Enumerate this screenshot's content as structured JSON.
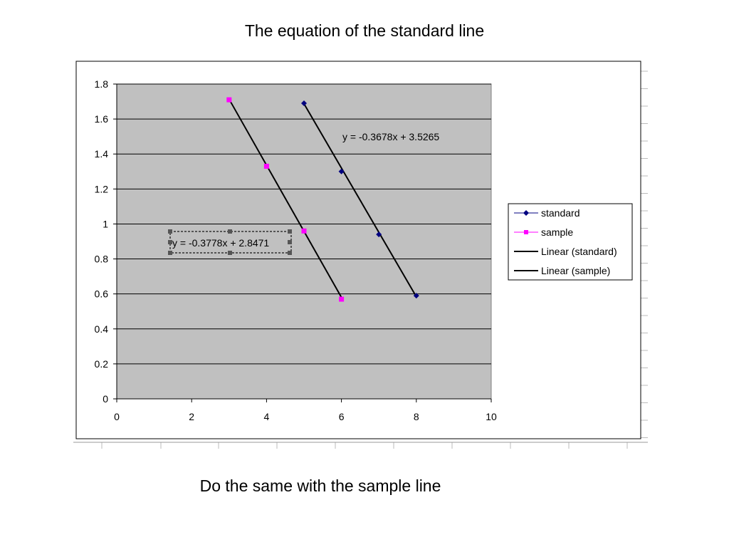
{
  "slide": {
    "title": "The equation of the standard line",
    "footer": "Do the same with the sample line"
  },
  "chart_data": {
    "type": "scatter",
    "xlim": [
      0,
      10
    ],
    "ylim": [
      0,
      1.8
    ],
    "x_ticks": [
      "0",
      "2",
      "4",
      "6",
      "8",
      "10"
    ],
    "y_ticks": [
      "0",
      "0.2",
      "0.4",
      "0.6",
      "0.8",
      "1",
      "1.2",
      "1.4",
      "1.6",
      "1.8"
    ],
    "grid": "horizontal",
    "plot_background": "#c0c0c0",
    "legend_position": "right",
    "series": [
      {
        "name": "standard",
        "marker": "diamond",
        "color": "#000080",
        "x": [
          5,
          6,
          7,
          8
        ],
        "y": [
          1.69,
          1.3,
          0.94,
          0.59
        ],
        "trendline": {
          "name": "Linear (standard)",
          "slope": -0.3678,
          "intercept": 3.5265,
          "x_range": [
            5,
            8
          ],
          "equation": "y = -0.3678x + 3.5265"
        }
      },
      {
        "name": "sample",
        "marker": "square",
        "color": "#ff00ff",
        "x": [
          3,
          4,
          5,
          6
        ],
        "y": [
          1.71,
          1.33,
          0.96,
          0.57
        ],
        "trendline": {
          "name": "Linear (sample)",
          "slope": -0.3778,
          "intercept": 2.8471,
          "x_range": [
            3,
            6
          ],
          "equation": "y = -0.3778x + 2.8471"
        }
      }
    ],
    "legend": [
      "standard",
      "sample",
      "Linear (standard)",
      "Linear (sample)"
    ]
  }
}
